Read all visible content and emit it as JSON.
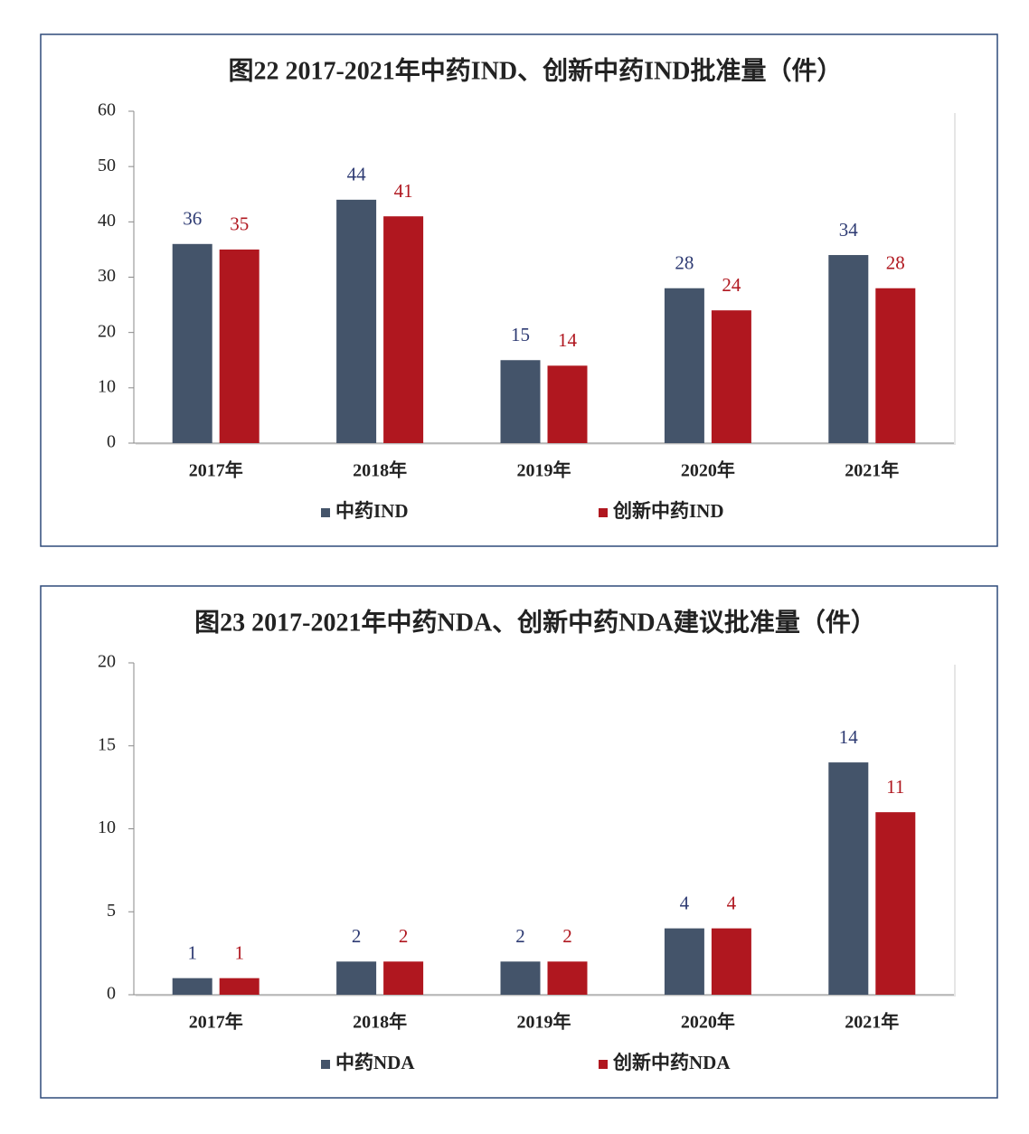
{
  "chart_data": [
    {
      "type": "bar",
      "title": "图22  2017-2021年中药IND、创新中药IND批准量（件）",
      "categories": [
        "2017年",
        "2018年",
        "2019年",
        "2020年",
        "2021年"
      ],
      "series": [
        {
          "name": "中药IND",
          "color": "#44546a",
          "values": [
            36,
            44,
            15,
            28,
            34
          ]
        },
        {
          "name": "创新中药IND",
          "color": "#b0171f",
          "values": [
            35,
            41,
            14,
            24,
            28
          ]
        }
      ],
      "ylim": [
        0,
        60
      ],
      "yticks": [
        0,
        10,
        20,
        30,
        40,
        50,
        60
      ]
    },
    {
      "type": "bar",
      "title": "图23 2017-2021年中药NDA、创新中药NDA建议批准量（件）",
      "categories": [
        "2017年",
        "2018年",
        "2019年",
        "2020年",
        "2021年"
      ],
      "series": [
        {
          "name": "中药NDA",
          "color": "#44546a",
          "values": [
            1,
            2,
            2,
            4,
            14
          ]
        },
        {
          "name": "创新中药NDA",
          "color": "#b0171f",
          "values": [
            1,
            2,
            2,
            4,
            11
          ]
        }
      ],
      "ylim": [
        0,
        20
      ],
      "yticks": [
        0,
        5,
        10,
        15,
        20
      ]
    }
  ]
}
